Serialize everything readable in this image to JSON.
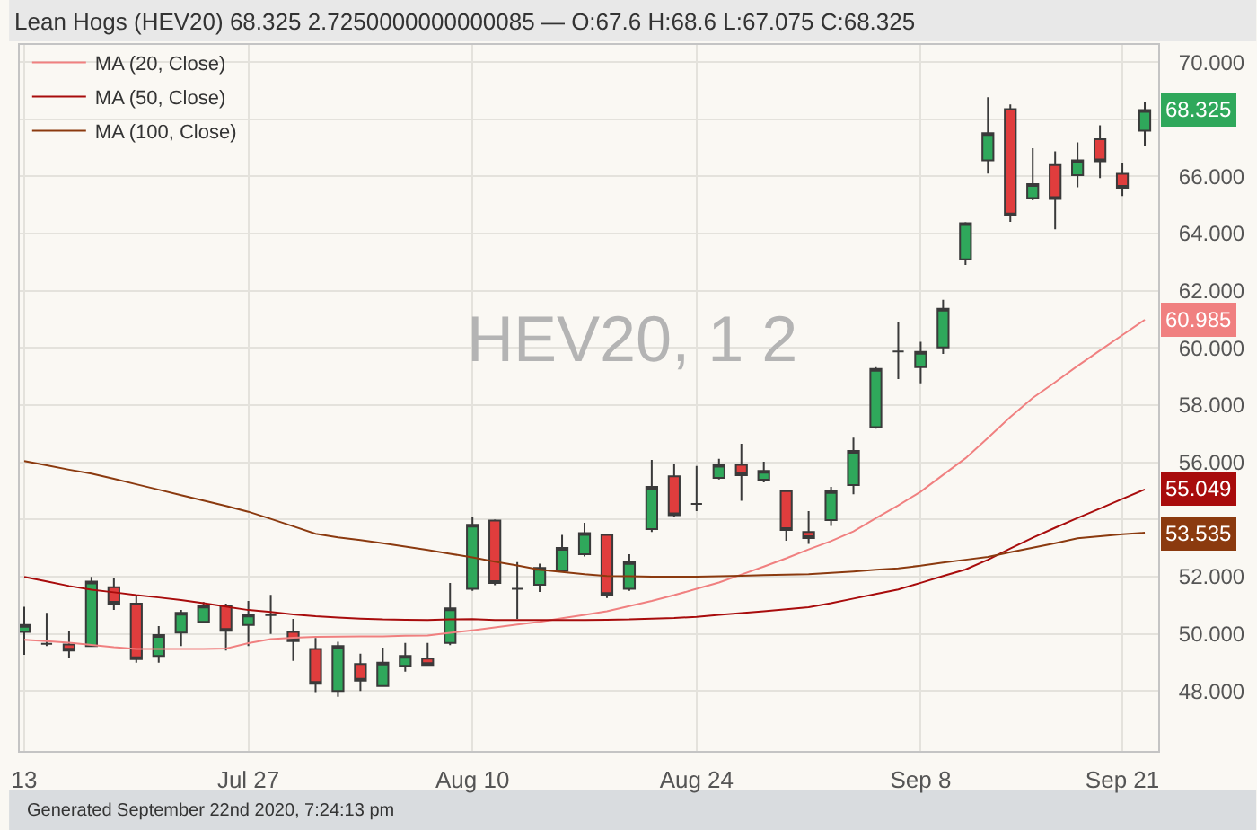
{
  "chart_data": {
    "type": "candlestick",
    "title": "Lean Hogs (HEV20) 68.325 2.7250000000000085 — O:67.6 H:68.6 L:67.075 C:68.325",
    "annotations": [
      "HEV20, 1 2",
      "Generated September 22nd 2020, 7:24:13 pm"
    ],
    "categories": [
      "13",
      null,
      null,
      null,
      null,
      null,
      null,
      null,
      null,
      null,
      "Jul 27",
      null,
      null,
      null,
      null,
      null,
      null,
      null,
      null,
      null,
      "Aug 10",
      null,
      null,
      null,
      null,
      null,
      null,
      null,
      null,
      null,
      "Aug 24",
      null,
      null,
      null,
      null,
      null,
      null,
      null,
      null,
      null,
      "Sep 8",
      null,
      null,
      null,
      null,
      null,
      null,
      null,
      null,
      "Sep 21",
      null
    ],
    "ohlc": [
      [
        50.06,
        50.94,
        49.26,
        50.31
      ],
      [
        49.65,
        50.73,
        49.57,
        49.65
      ],
      [
        49.62,
        50.1,
        49.16,
        49.41
      ],
      [
        49.57,
        51.99,
        49.57,
        51.82
      ],
      [
        51.63,
        51.95,
        50.83,
        51.05
      ],
      [
        51.05,
        51.36,
        48.99,
        49.11
      ],
      [
        49.22,
        50.27,
        48.99,
        49.95
      ],
      [
        50.04,
        50.83,
        49.57,
        50.73
      ],
      [
        50.42,
        51.11,
        50.4,
        50.98
      ],
      [
        50.98,
        51.05,
        49.41,
        50.1
      ],
      [
        50.31,
        51.15,
        49.57,
        50.67
      ],
      [
        50.65,
        51.36,
        49.99,
        50.65
      ],
      [
        50.06,
        50.52,
        49.05,
        49.74
      ],
      [
        49.47,
        49.85,
        47.96,
        48.25
      ],
      [
        48.0,
        49.72,
        47.79,
        49.57
      ],
      [
        48.94,
        49.3,
        48.0,
        48.36
      ],
      [
        48.17,
        49.51,
        48.15,
        48.99
      ],
      [
        48.88,
        49.68,
        48.67,
        49.22
      ],
      [
        49.13,
        49.68,
        48.9,
        48.91
      ],
      [
        49.68,
        51.78,
        49.6,
        50.89
      ],
      [
        51.57,
        54.09,
        51.5,
        53.81
      ],
      [
        53.96,
        54.0,
        51.7,
        51.78
      ],
      [
        51.57,
        52.51,
        50.52,
        51.57
      ],
      [
        51.71,
        52.45,
        51.46,
        52.3
      ],
      [
        52.2,
        53.46,
        52.15,
        53.0
      ],
      [
        52.78,
        53.88,
        52.7,
        53.52
      ],
      [
        53.46,
        53.5,
        51.25,
        51.36
      ],
      [
        51.57,
        52.78,
        51.5,
        52.51
      ],
      [
        53.66,
        56.08,
        53.56,
        55.14
      ],
      [
        55.51,
        55.93,
        54.09,
        54.15
      ],
      [
        54.54,
        55.87,
        54.29,
        54.54
      ],
      [
        55.45,
        56.12,
        55.4,
        55.91
      ],
      [
        55.91,
        56.65,
        54.65,
        55.55
      ],
      [
        55.39,
        56.02,
        55.3,
        55.7
      ],
      [
        54.99,
        55.0,
        53.25,
        53.63
      ],
      [
        53.56,
        54.29,
        53.14,
        53.35
      ],
      [
        53.98,
        55.14,
        53.77,
        54.99
      ],
      [
        55.2,
        56.86,
        54.88,
        56.4
      ],
      [
        57.23,
        59.33,
        57.17,
        59.26
      ],
      [
        59.88,
        60.9,
        58.91,
        59.88
      ],
      [
        59.33,
        60.21,
        58.76,
        59.86
      ],
      [
        60.02,
        61.68,
        59.79,
        61.37
      ],
      [
        63.1,
        64.4,
        62.9,
        64.36
      ],
      [
        66.56,
        68.77,
        66.1,
        67.51
      ],
      [
        68.35,
        68.52,
        64.41,
        64.64
      ],
      [
        65.24,
        66.99,
        65.16,
        65.73
      ],
      [
        66.4,
        66.88,
        64.15,
        65.21
      ],
      [
        66.04,
        67.19,
        65.62,
        66.56
      ],
      [
        67.3,
        67.79,
        65.94,
        66.53
      ],
      [
        66.09,
        66.46,
        65.31,
        65.6
      ],
      [
        67.6,
        68.6,
        67.075,
        68.325
      ]
    ],
    "colors": [
      "#2fa85b",
      "#3a3a3a",
      "#e03d3d",
      "#2fa85b",
      "#e03d3d",
      "#e03d3d",
      "#2fa85b",
      "#2fa85b",
      "#2fa85b",
      "#e03d3d",
      "#2fa85b",
      "#3a3a3a",
      "#e03d3d",
      "#e03d3d",
      "#2fa85b",
      "#e03d3d",
      "#2fa85b",
      "#2fa85b",
      "#e03d3d",
      "#2fa85b",
      "#2fa85b",
      "#e03d3d",
      "#3a3a3a",
      "#2fa85b",
      "#2fa85b",
      "#2fa85b",
      "#e03d3d",
      "#2fa85b",
      "#2fa85b",
      "#e03d3d",
      "#3a3a3a",
      "#2fa85b",
      "#e03d3d",
      "#2fa85b",
      "#e03d3d",
      "#e03d3d",
      "#2fa85b",
      "#2fa85b",
      "#2fa85b",
      "#3a3a3a",
      "#2fa85b",
      "#2fa85b",
      "#2fa85b",
      "#2fa85b",
      "#e03d3d",
      "#2fa85b",
      "#e03d3d",
      "#2fa85b",
      "#e03d3d",
      "#e03d3d",
      "#2fa85b"
    ],
    "value_labels": [
      null,
      null,
      null,
      null,
      null,
      null,
      null,
      null,
      null,
      null,
      null,
      null,
      null,
      null,
      null,
      null,
      null,
      null,
      null,
      null,
      null,
      null,
      null,
      null,
      null,
      null,
      null,
      null,
      null,
      null,
      null,
      null,
      null,
      null,
      null,
      null,
      null,
      null,
      null,
      null,
      null,
      null,
      null,
      null,
      null,
      null,
      null,
      null,
      null,
      null,
      "68.325"
    ],
    "series": [
      {
        "name": "MA (20, Close)",
        "type": "line",
        "color": "#f08080",
        "values": [
          49.79,
          49.74,
          49.69,
          49.61,
          49.53,
          49.47,
          49.47,
          49.47,
          49.47,
          49.48,
          49.67,
          49.81,
          49.86,
          49.89,
          49.9,
          49.91,
          49.91,
          49.93,
          49.94,
          50.03,
          50.12,
          50.22,
          50.32,
          50.42,
          50.54,
          50.66,
          50.79,
          50.97,
          51.15,
          51.35,
          51.57,
          51.79,
          52.07,
          52.35,
          52.64,
          52.95,
          53.24,
          53.58,
          54.04,
          54.49,
          54.97,
          55.56,
          56.14,
          56.85,
          57.58,
          58.25,
          58.8,
          59.37,
          59.91,
          60.45,
          60.985
        ],
        "value_labels": [
          null,
          null,
          null,
          null,
          null,
          null,
          null,
          null,
          null,
          null,
          null,
          null,
          null,
          null,
          null,
          null,
          null,
          null,
          null,
          null,
          null,
          null,
          null,
          null,
          null,
          null,
          null,
          null,
          null,
          null,
          null,
          null,
          null,
          null,
          null,
          null,
          null,
          null,
          null,
          null,
          null,
          null,
          null,
          null,
          null,
          null,
          null,
          null,
          null,
          null,
          "60.985"
        ]
      },
      {
        "name": "MA (50, Close)",
        "type": "line",
        "color": "#a80c0c",
        "values": [
          51.99,
          51.83,
          51.67,
          51.54,
          51.45,
          51.35,
          51.27,
          51.18,
          51.07,
          50.95,
          50.83,
          50.76,
          50.68,
          50.61,
          50.57,
          50.53,
          50.5,
          50.49,
          50.48,
          50.5,
          50.51,
          50.48,
          50.48,
          50.48,
          50.48,
          50.48,
          50.49,
          50.5,
          50.53,
          50.55,
          50.59,
          50.66,
          50.72,
          50.79,
          50.86,
          50.93,
          51.07,
          51.23,
          51.39,
          51.55,
          51.78,
          52.02,
          52.25,
          52.59,
          52.98,
          53.36,
          53.71,
          54.05,
          54.38,
          54.72,
          55.049
        ],
        "value_labels": [
          null,
          null,
          null,
          null,
          null,
          null,
          null,
          null,
          null,
          null,
          null,
          null,
          null,
          null,
          null,
          null,
          null,
          null,
          null,
          null,
          null,
          null,
          null,
          null,
          null,
          null,
          null,
          null,
          null,
          null,
          null,
          null,
          null,
          null,
          null,
          null,
          null,
          null,
          null,
          null,
          null,
          null,
          null,
          null,
          null,
          null,
          null,
          null,
          null,
          null,
          "55.049"
        ]
      },
      {
        "name": "MA (100, Close)",
        "type": "line",
        "color": "#8b3a0f",
        "values": [
          56.04,
          55.89,
          55.74,
          55.6,
          55.42,
          55.23,
          55.04,
          54.85,
          54.66,
          54.47,
          54.27,
          54.02,
          53.76,
          53.5,
          53.37,
          53.28,
          53.17,
          53.05,
          52.93,
          52.8,
          52.67,
          52.52,
          52.39,
          52.24,
          52.16,
          52.08,
          52.02,
          52.01,
          52.0,
          52.0,
          52.0,
          52.01,
          52.03,
          52.05,
          52.07,
          52.08,
          52.13,
          52.18,
          52.24,
          52.29,
          52.38,
          52.49,
          52.59,
          52.69,
          52.85,
          53.01,
          53.17,
          53.34,
          53.41,
          53.48,
          53.535
        ],
        "value_labels": [
          null,
          null,
          null,
          null,
          null,
          null,
          null,
          null,
          null,
          null,
          null,
          null,
          null,
          null,
          null,
          null,
          null,
          null,
          null,
          null,
          null,
          null,
          null,
          null,
          null,
          null,
          null,
          null,
          null,
          null,
          null,
          null,
          null,
          null,
          null,
          null,
          null,
          null,
          null,
          null,
          null,
          null,
          null,
          null,
          null,
          null,
          null,
          null,
          null,
          null,
          "53.535"
        ]
      }
    ],
    "ylim": [
      45.9,
      70.6
    ],
    "yticks": [
      {
        "value": 48,
        "label": "48.000"
      },
      {
        "value": 50,
        "label": "50.000"
      },
      {
        "value": 52,
        "label": "52.000"
      },
      {
        "value": 54,
        "label": null
      },
      {
        "value": 56,
        "label": "56.000"
      },
      {
        "value": 58,
        "label": "58.000"
      },
      {
        "value": 60,
        "label": "60.000"
      },
      {
        "value": 62,
        "label": "62.000"
      },
      {
        "value": 64,
        "label": "64.000"
      },
      {
        "value": 66,
        "label": "66.000"
      },
      {
        "value": 68,
        "label": null
      },
      {
        "value": 70,
        "label": "70.000"
      }
    ],
    "grid": true,
    "legend": "top left"
  }
}
